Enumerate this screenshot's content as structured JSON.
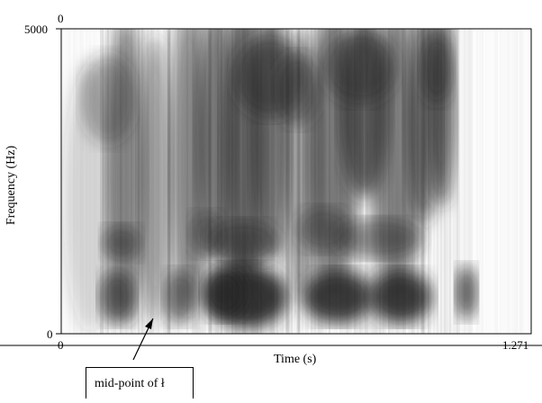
{
  "chart_data": {
    "type": "heatmap",
    "title": "",
    "xlabel": "Time (s)",
    "ylabel": "Frequency (Hz)",
    "xlim": [
      0,
      1.271
    ],
    "ylim": [
      0,
      5000
    ],
    "x_tick_labels": [
      "0",
      "1.271"
    ],
    "y_tick_labels": [
      "0",
      "5000",
      "0"
    ],
    "colormap": "grayscale (dark = high energy)",
    "annotations": [
      {
        "text": "mid-point of ł",
        "x": 0.19,
        "y": 0
      }
    ]
  },
  "colors": {
    "ink": "#000000",
    "background": "#ffffff"
  }
}
